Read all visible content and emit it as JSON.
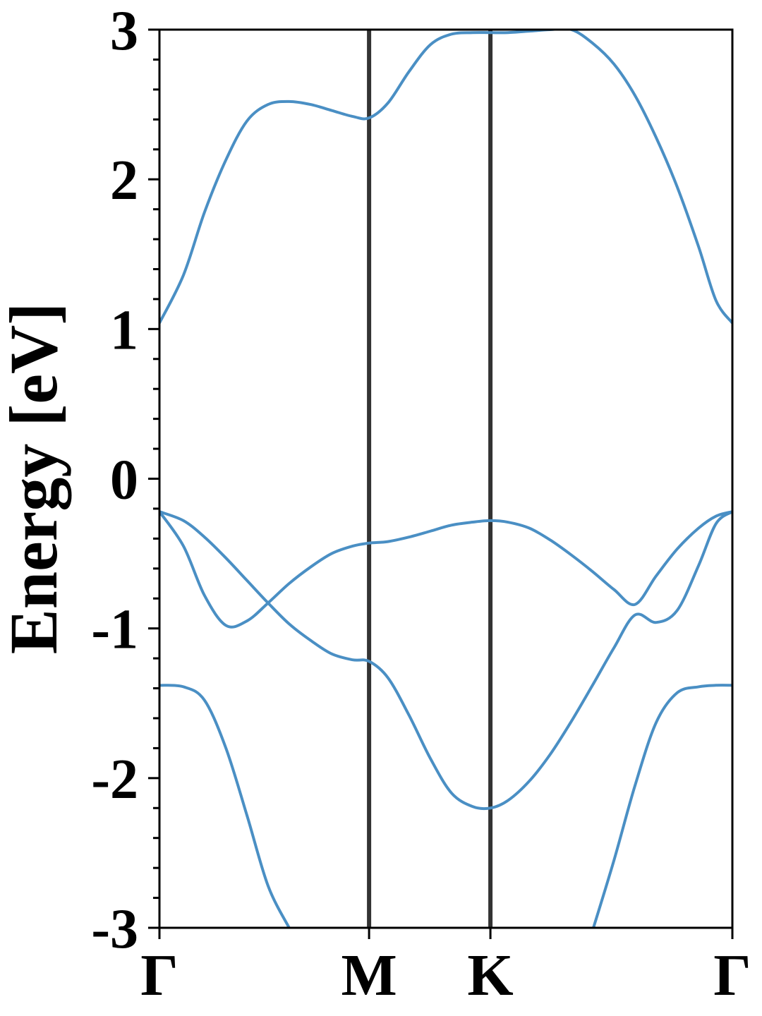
{
  "chart_data": {
    "type": "line",
    "y_label": "Energy [eV]",
    "x": [
      0,
      0.066,
      0.124,
      0.183,
      0.241,
      0.299,
      0.357,
      0.416,
      0.474,
      0.532,
      0.577,
      0.629,
      0.687,
      0.746,
      0.804,
      0.862,
      0.911,
      0.959,
      1.018,
      1.076,
      1.134,
      1.192,
      1.251,
      1.309,
      1.367,
      1.425,
      1.484,
      1.532,
      1.577
    ],
    "series": [
      {
        "color": "#4a8fc4",
        "values": [
          1.04,
          1.36,
          1.78,
          2.13,
          2.39,
          2.5,
          2.52,
          2.5,
          2.46,
          2.42,
          2.41,
          2.51,
          2.72,
          2.9,
          2.97,
          2.98,
          2.98,
          2.98,
          2.99,
          3.0,
          3.0,
          2.91,
          2.77,
          2.56,
          2.28,
          1.95,
          1.55,
          1.19,
          1.04
        ]
      },
      {
        "color": "#4a8fc4",
        "values": [
          -0.22,
          -0.45,
          -0.78,
          -0.98,
          -0.95,
          -0.83,
          -0.7,
          -0.59,
          -0.5,
          -0.45,
          -0.43,
          -0.42,
          -0.39,
          -0.35,
          -0.31,
          -0.29,
          -0.28,
          -0.29,
          -0.33,
          -0.41,
          -0.51,
          -0.62,
          -0.74,
          -0.84,
          -0.65,
          -0.47,
          -0.33,
          -0.25,
          -0.22
        ]
      },
      {
        "color": "#4a8fc4",
        "values": [
          -0.22,
          -0.28,
          -0.39,
          -0.53,
          -0.68,
          -0.83,
          -0.97,
          -1.08,
          -1.17,
          -1.21,
          -1.22,
          -1.33,
          -1.58,
          -1.87,
          -2.1,
          -2.19,
          -2.2,
          -2.15,
          -2.02,
          -1.84,
          -1.62,
          -1.38,
          -1.13,
          -0.91,
          -0.96,
          -0.88,
          -0.58,
          -0.3,
          -0.22
        ]
      },
      {
        "color": "#4a8fc4",
        "values": [
          -1.38,
          -1.39,
          -1.48,
          -1.8,
          -2.25,
          -2.72,
          -3.0,
          null,
          null,
          null,
          null,
          null,
          null,
          null,
          null,
          null,
          null,
          null,
          null,
          null,
          null,
          -3.02,
          -2.55,
          -2.05,
          -1.63,
          -1.43,
          -1.39,
          -1.38,
          -1.38
        ]
      }
    ],
    "xlim": [
      0,
      1.577
    ],
    "xticks": [
      {
        "value": 0,
        "label": "Γ"
      },
      {
        "value": 0.577,
        "label": "M"
      },
      {
        "value": 0.911,
        "label": "K"
      },
      {
        "value": 1.577,
        "label": "Γ"
      }
    ],
    "ylim": [
      -3,
      3
    ],
    "yticks": [
      -3,
      -2,
      -1,
      0,
      1,
      2,
      3
    ],
    "yminorticks": [
      -2.8,
      -2.6,
      -2.4,
      -2.2,
      -1.8,
      -1.6,
      -1.4,
      -1.2,
      -0.8,
      -0.6,
      -0.4,
      -0.2,
      0.2,
      0.4,
      0.6,
      0.8,
      1.2,
      1.4,
      1.6,
      1.8,
      2.2,
      2.4,
      2.6,
      2.8
    ],
    "xgrid": true,
    "xgrid_color": "#333333"
  }
}
